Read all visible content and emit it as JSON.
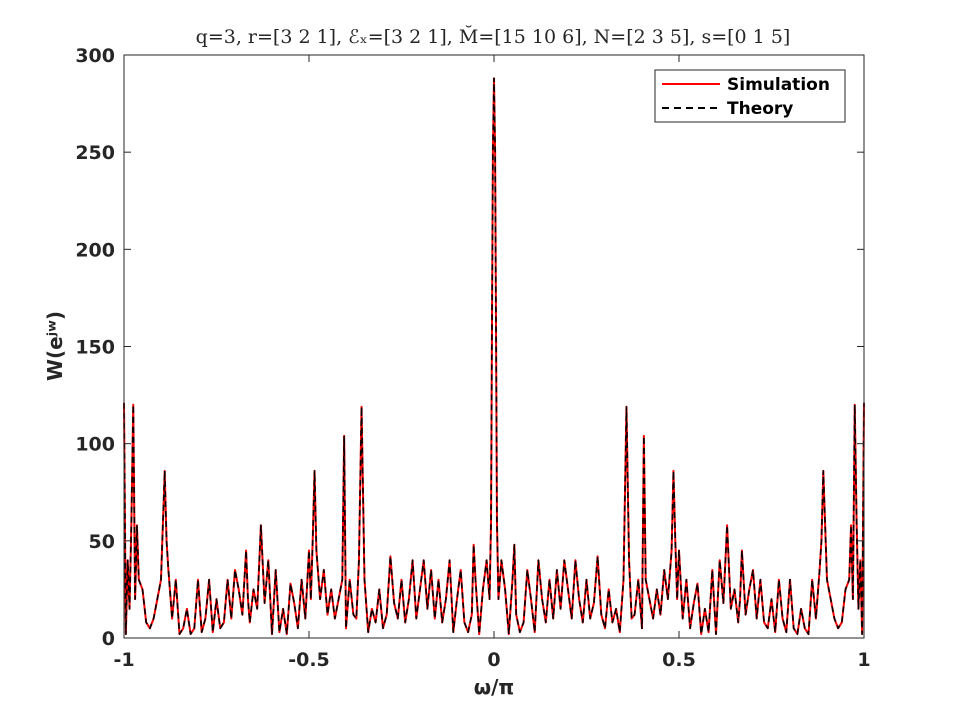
{
  "chart_data": {
    "type": "line",
    "title": "q=3, r=[3 2 1], ℰₓ=[3 2 1], M̆=[15 10 6], N=[2 3 5], s=[0 1 5]",
    "xlabel": "ω/π",
    "ylabel": "W(eʲʷ)",
    "xlim": [
      -1,
      1
    ],
    "ylim": [
      0,
      300
    ],
    "xticks": [
      -1,
      -0.5,
      0,
      0.5,
      1
    ],
    "xtick_labels": [
      "-1",
      "-0.5",
      "0",
      "0.5",
      "1"
    ],
    "yticks": [
      0,
      50,
      100,
      150,
      200,
      250,
      300
    ],
    "ytick_labels": [
      "0",
      "50",
      "100",
      "150",
      "200",
      "250",
      "300"
    ],
    "grid": false,
    "legend_position": "top-right",
    "symmetric": true,
    "series": [
      {
        "name": "Simulation",
        "color": "#ff0000",
        "style": "solid",
        "x": [
          0,
          0.003,
          0.006,
          0.008,
          0.012,
          0.02,
          0.03,
          0.04,
          0.05,
          0.055,
          0.06,
          0.07,
          0.08,
          0.09,
          0.1,
          0.11,
          0.12,
          0.13,
          0.14,
          0.15,
          0.16,
          0.17,
          0.18,
          0.19,
          0.2,
          0.21,
          0.22,
          0.23,
          0.24,
          0.25,
          0.26,
          0.27,
          0.28,
          0.29,
          0.3,
          0.31,
          0.32,
          0.33,
          0.34,
          0.35,
          0.358,
          0.365,
          0.372,
          0.38,
          0.39,
          0.4,
          0.405,
          0.41,
          0.42,
          0.43,
          0.44,
          0.45,
          0.46,
          0.47,
          0.48,
          0.485,
          0.49,
          0.495,
          0.5,
          0.51,
          0.52,
          0.53,
          0.54,
          0.55,
          0.56,
          0.57,
          0.58,
          0.59,
          0.6,
          0.61,
          0.62,
          0.63,
          0.64,
          0.65,
          0.66,
          0.665,
          0.67,
          0.68,
          0.69,
          0.7,
          0.71,
          0.72,
          0.73,
          0.74,
          0.75,
          0.76,
          0.77,
          0.78,
          0.79,
          0.8,
          0.81,
          0.82,
          0.83,
          0.84,
          0.85,
          0.86,
          0.87,
          0.88,
          0.885,
          0.89,
          0.9,
          0.91,
          0.92,
          0.93,
          0.94,
          0.95,
          0.96,
          0.965,
          0.97,
          0.975,
          0.98,
          0.985,
          0.99,
          0.995,
          1.0
        ],
        "y": [
          288,
          250,
          140,
          60,
          20,
          40,
          25,
          2,
          30,
          48,
          12,
          3,
          8,
          35,
          20,
          3,
          40,
          20,
          8,
          30,
          10,
          35,
          15,
          40,
          25,
          10,
          40,
          20,
          8,
          30,
          10,
          18,
          42,
          12,
          5,
          25,
          8,
          15,
          3,
          30,
          119,
          40,
          10,
          12,
          30,
          5,
          104,
          30,
          20,
          10,
          25,
          12,
          35,
          20,
          45,
          86,
          50,
          20,
          45,
          10,
          30,
          5,
          18,
          28,
          2,
          15,
          3,
          35,
          2,
          40,
          18,
          58,
          15,
          25,
          8,
          20,
          45,
          12,
          25,
          35,
          10,
          30,
          8,
          5,
          20,
          3,
          30,
          10,
          3,
          30,
          5,
          2,
          15,
          5,
          2,
          30,
          10,
          35,
          50,
          86,
          30,
          20,
          10,
          5,
          8,
          25,
          30,
          58,
          20,
          120,
          60,
          15,
          40,
          2,
          121
        ]
      },
      {
        "name": "Theory",
        "color": "#000000",
        "style": "dashed",
        "x": [
          0,
          0.003,
          0.006,
          0.008,
          0.012,
          0.02,
          0.03,
          0.04,
          0.05,
          0.055,
          0.06,
          0.07,
          0.08,
          0.09,
          0.1,
          0.11,
          0.12,
          0.13,
          0.14,
          0.15,
          0.16,
          0.17,
          0.18,
          0.19,
          0.2,
          0.21,
          0.22,
          0.23,
          0.24,
          0.25,
          0.26,
          0.27,
          0.28,
          0.29,
          0.3,
          0.31,
          0.32,
          0.33,
          0.34,
          0.35,
          0.358,
          0.365,
          0.372,
          0.38,
          0.39,
          0.4,
          0.405,
          0.41,
          0.42,
          0.43,
          0.44,
          0.45,
          0.46,
          0.47,
          0.48,
          0.485,
          0.49,
          0.495,
          0.5,
          0.51,
          0.52,
          0.53,
          0.54,
          0.55,
          0.56,
          0.57,
          0.58,
          0.59,
          0.6,
          0.61,
          0.62,
          0.63,
          0.64,
          0.65,
          0.66,
          0.665,
          0.67,
          0.68,
          0.69,
          0.7,
          0.71,
          0.72,
          0.73,
          0.74,
          0.75,
          0.76,
          0.77,
          0.78,
          0.79,
          0.8,
          0.81,
          0.82,
          0.83,
          0.84,
          0.85,
          0.86,
          0.87,
          0.88,
          0.885,
          0.89,
          0.9,
          0.91,
          0.92,
          0.93,
          0.94,
          0.95,
          0.96,
          0.965,
          0.97,
          0.975,
          0.98,
          0.985,
          0.99,
          0.995,
          1.0
        ],
        "y": [
          288,
          250,
          140,
          60,
          20,
          40,
          25,
          2,
          30,
          48,
          12,
          3,
          8,
          35,
          20,
          3,
          40,
          20,
          8,
          30,
          10,
          35,
          15,
          40,
          25,
          10,
          40,
          20,
          8,
          30,
          10,
          18,
          42,
          12,
          5,
          25,
          8,
          15,
          3,
          30,
          119,
          40,
          10,
          12,
          30,
          5,
          104,
          30,
          20,
          10,
          25,
          12,
          35,
          20,
          45,
          86,
          50,
          20,
          45,
          10,
          30,
          5,
          18,
          28,
          2,
          15,
          3,
          35,
          2,
          40,
          18,
          58,
          15,
          25,
          8,
          20,
          45,
          12,
          25,
          35,
          10,
          30,
          8,
          5,
          20,
          3,
          30,
          10,
          3,
          30,
          5,
          2,
          15,
          5,
          2,
          30,
          10,
          35,
          50,
          86,
          30,
          20,
          10,
          5,
          8,
          25,
          30,
          58,
          20,
          120,
          60,
          15,
          40,
          2,
          121
        ]
      }
    ]
  }
}
